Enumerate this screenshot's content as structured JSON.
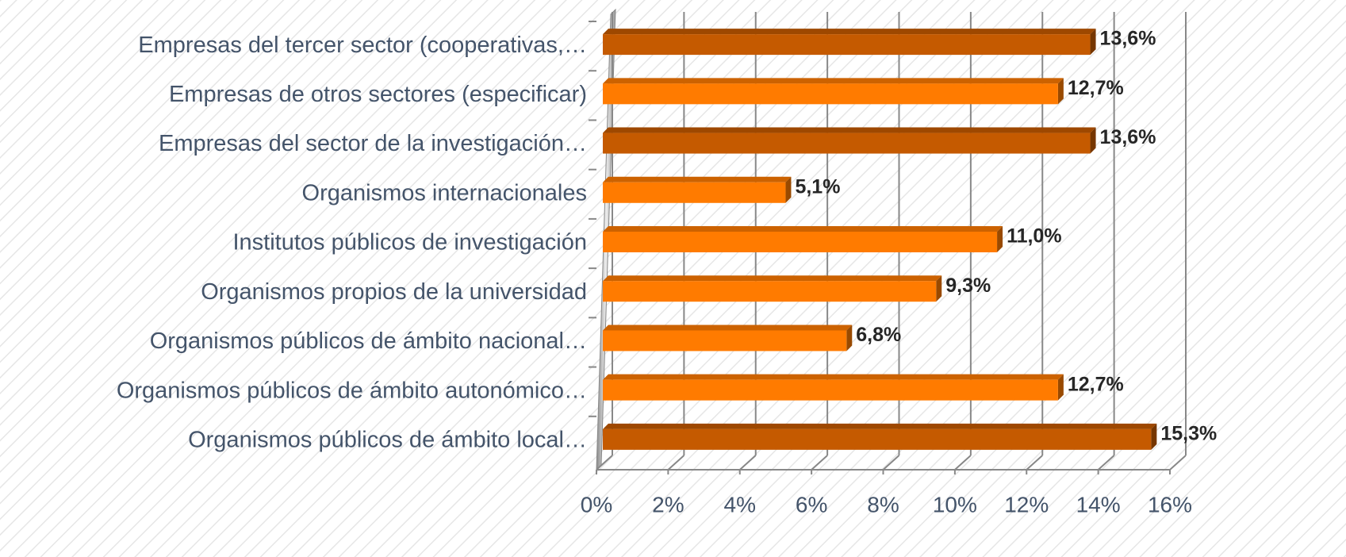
{
  "chart_data": {
    "type": "bar",
    "orientation": "horizontal",
    "categories": [
      "Empresas del tercer sector (cooperativas,…",
      "Empresas de otros sectores (especificar)",
      "Empresas del sector de la investigación…",
      "Organismos internacionales",
      "Institutos públicos de investigación",
      "Organismos propios de la universidad",
      "Organismos públicos de ámbito nacional…",
      "Organismos públicos de ámbito autonómico…",
      "Organismos públicos de ámbito local…"
    ],
    "values": [
      13.6,
      12.7,
      13.6,
      5.1,
      11.0,
      9.3,
      6.8,
      12.7,
      15.3
    ],
    "value_labels": [
      "13,6%",
      "12,7%",
      "13,6%",
      "5,1%",
      "11,0%",
      "9,3%",
      "6,8%",
      "12,7%",
      "15,3%"
    ],
    "colors": [
      "#c55a00",
      "#ff7b00",
      "#c55a00",
      "#ff7b00",
      "#ff7b00",
      "#ff7b00",
      "#ff7b00",
      "#ff7b00",
      "#c55a00"
    ],
    "xlim": [
      0,
      16
    ],
    "xticks": [
      {
        "value": 0,
        "label": "0%"
      },
      {
        "value": 2,
        "label": "2%"
      },
      {
        "value": 4,
        "label": "4%"
      },
      {
        "value": 6,
        "label": "6%"
      },
      {
        "value": 8,
        "label": "8%"
      },
      {
        "value": 10,
        "label": "10%"
      },
      {
        "value": 12,
        "label": "12%"
      },
      {
        "value": 14,
        "label": "14%"
      },
      {
        "value": 16,
        "label": "16%"
      }
    ],
    "grid": true
  }
}
